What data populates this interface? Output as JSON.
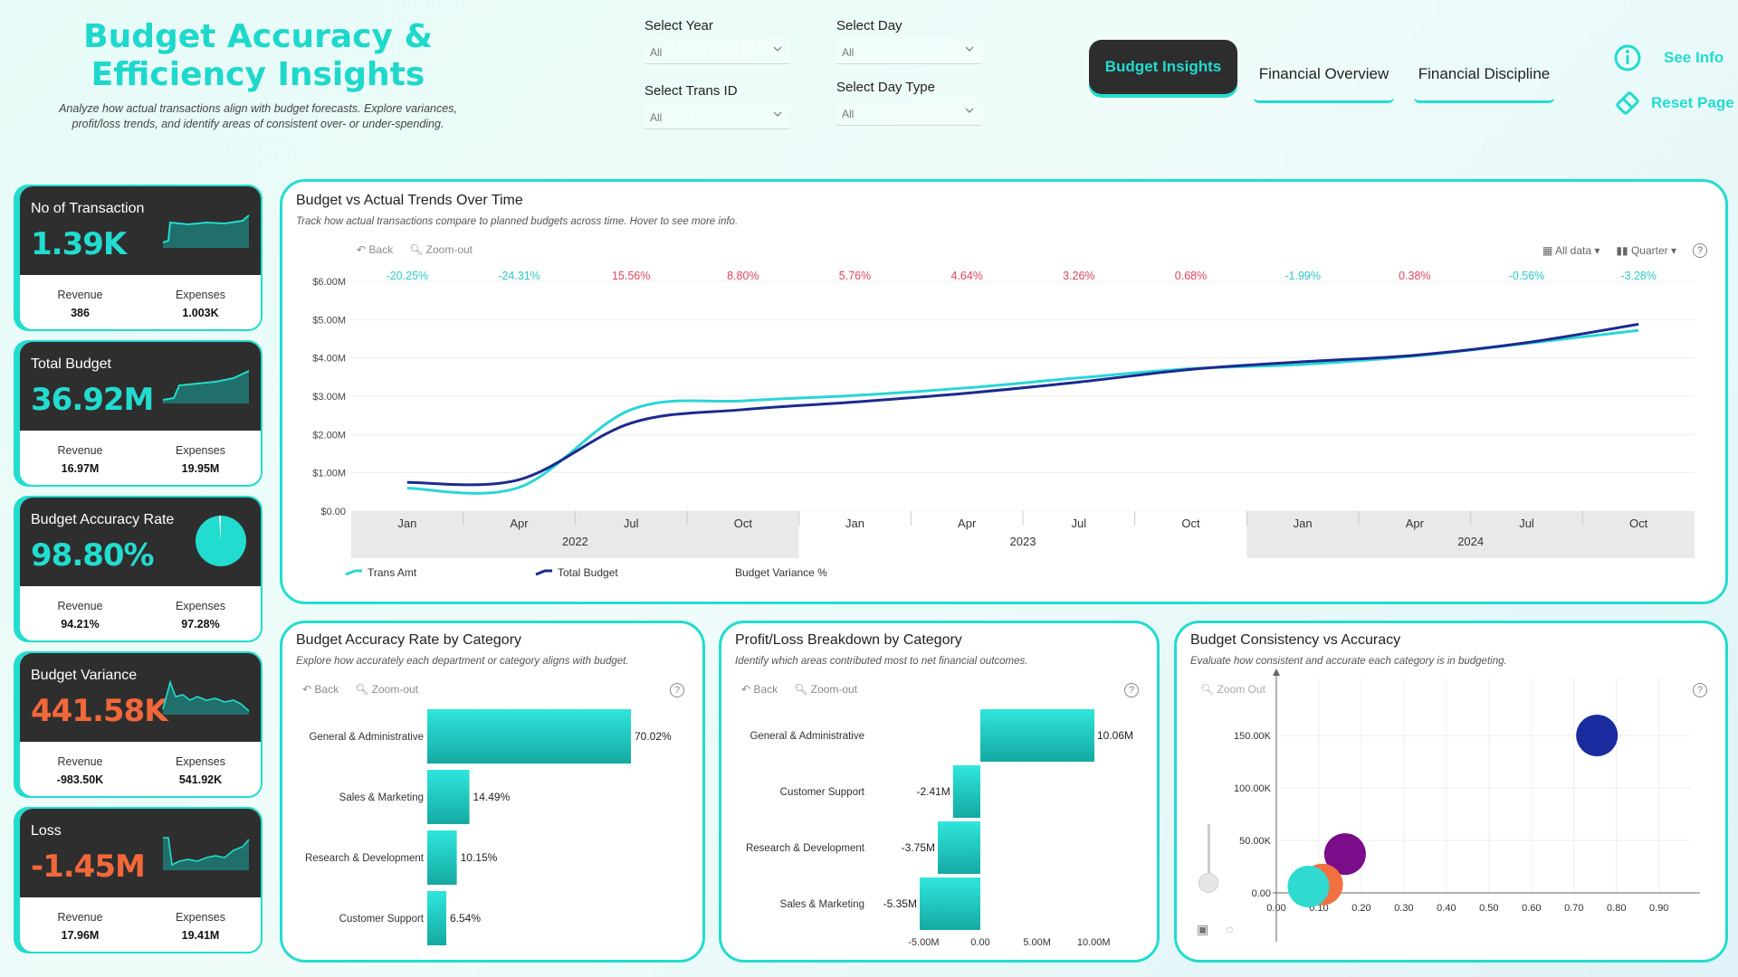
{
  "header": {
    "title": "Budget Accuracy & Efficiency Insights",
    "subtitle": "Analyze how actual transactions align with budget forecasts. Explore variances, profit/loss trends, and identify areas of consistent over- or under-spending."
  },
  "filters": {
    "year": {
      "label": "Select Year",
      "value": "All"
    },
    "day": {
      "label": "Select Day",
      "value": "All"
    },
    "trans_id": {
      "label": "Select Trans ID",
      "value": "All"
    },
    "day_type": {
      "label": "Select Day Type",
      "value": "All"
    }
  },
  "nav": {
    "tabs": [
      {
        "label": "Budget Insights",
        "active": true
      },
      {
        "label": "Financial Overview",
        "active": false
      },
      {
        "label": "Financial Discipline",
        "active": false
      }
    ],
    "see_info": "See Info",
    "reset_page": "Reset Page"
  },
  "kpis": [
    {
      "label": "No of Transaction",
      "value": "1.39K",
      "rev_label": "Revenue",
      "rev": "386",
      "exp_label": "Expenses",
      "exp": "1.003K"
    },
    {
      "label": "Total Budget",
      "value": "36.92M",
      "rev_label": "Revenue",
      "rev": "16.97M",
      "exp_label": "Expenses",
      "exp": "19.95M"
    },
    {
      "label": "Budget Accuracy Rate",
      "value": "98.80%",
      "rev_label": "Revenue",
      "rev": "94.21%",
      "exp_label": "Expenses",
      "exp": "97.28%"
    },
    {
      "label": "Budget Variance",
      "value": "441.58K",
      "rev_label": "Revenue",
      "rev": "-983.50K",
      "exp_label": "Expenses",
      "exp": "541.92K"
    },
    {
      "label": "Loss",
      "value": "-1.45M",
      "rev_label": "Revenue",
      "rev": "17.96M",
      "exp_label": "Expenses",
      "exp": "19.41M"
    }
  ],
  "trend": {
    "title": "Budget vs Actual Trends Over Time",
    "subtitle": "Track how actual transactions compare to planned budgets across time. Hover to see more info.",
    "back": "Back",
    "zoom_out": "Zoom-out",
    "all_data": "All data",
    "quarter": "Quarter",
    "legend": [
      "Trans Amt",
      "Total Budget",
      "Budget Variance %"
    ]
  },
  "accuracy": {
    "title": "Budget Accuracy Rate by Category",
    "subtitle": "Explore how accurately each department or category aligns with budget.",
    "back": "Back",
    "zoom_out": "Zoom-out"
  },
  "profit": {
    "title": "Profit/Loss Breakdown by Category",
    "subtitle": "Identify which areas contributed most to net financial outcomes.",
    "back": "Back",
    "zoom_out": "Zoom-out"
  },
  "consistency": {
    "title": "Budget Consistency vs Accuracy",
    "subtitle": "Evaluate how consistent and accurate each category is in budgeting.",
    "zoom_out": "Zoom Out"
  },
  "chart_data": [
    {
      "type": "line",
      "x": [
        "Jan 2022",
        "Apr 2022",
        "Jul 2022",
        "Oct 2022",
        "Jan 2023",
        "Apr 2023",
        "Jul 2023",
        "Oct 2023",
        "Jan 2024",
        "Apr 2024",
        "Jul 2024",
        "Oct 2024"
      ],
      "x_ticks": [
        "Jan",
        "Apr",
        "Jul",
        "Oct",
        "Jan",
        "Apr",
        "Jul",
        "Oct",
        "Jan",
        "Apr",
        "Jul",
        "Oct"
      ],
      "x_groups": [
        "2022",
        "2023",
        "2024"
      ],
      "series": [
        {
          "name": "Trans Amt",
          "color": "#2ad6d6",
          "values": [
            0.6,
            0.62,
            2.65,
            2.88,
            3.02,
            3.22,
            3.48,
            3.72,
            3.83,
            4.05,
            4.38,
            4.72
          ]
        },
        {
          "name": "Total Budget",
          "color": "#1b2a8f",
          "values": [
            0.75,
            0.82,
            2.3,
            2.65,
            2.85,
            3.08,
            3.37,
            3.7,
            3.9,
            4.07,
            4.4,
            4.88
          ]
        }
      ],
      "variance_labels": [
        "-20.25%",
        "-24.31%",
        "15.56%",
        "8.80%",
        "5.76%",
        "4.64%",
        "3.26%",
        "0.68%",
        "-1.99%",
        "0.38%",
        "-0.56%",
        "-3.28%"
      ],
      "y_ticks": [
        "$0.00",
        "$1.00M",
        "$2.00M",
        "$3.00M",
        "$4.00M",
        "$5.00M",
        "$6.00M"
      ],
      "ylim": [
        0,
        6
      ]
    },
    {
      "type": "bar",
      "categories": [
        "General & Administrative",
        "Sales & Marketing",
        "Research & Development",
        "Customer Support"
      ],
      "values": [
        70.02,
        14.49,
        10.15,
        6.54
      ],
      "labels": [
        "70.02%",
        "14.49%",
        "10.15%",
        "6.54%"
      ]
    },
    {
      "type": "bar",
      "categories": [
        "General & Administrative",
        "Customer Support",
        "Research & Development",
        "Sales & Marketing"
      ],
      "values": [
        10.06,
        -2.41,
        -3.75,
        -5.35
      ],
      "labels": [
        "10.06M",
        "-2.41M",
        "-3.75M",
        "-5.35M"
      ],
      "x_ticks": [
        "-5.00M",
        "0.00",
        "5.00M",
        "10.00M"
      ],
      "xlim": [
        -5.35,
        10.06
      ]
    },
    {
      "type": "scatter",
      "points": [
        {
          "x": 0.7,
          "y": 150,
          "color": "#1a2ba0"
        },
        {
          "x": 0.15,
          "y": 37,
          "color": "#7b0c8a"
        },
        {
          "x": 0.1,
          "y": 8,
          "color": "#f07040"
        },
        {
          "x": 0.07,
          "y": 6,
          "color": "#2fdad0"
        }
      ],
      "x_ticks": [
        "0.00",
        "0.10",
        "0.20",
        "0.30",
        "0.40",
        "0.50",
        "0.60",
        "0.70",
        "0.80",
        "0.90"
      ],
      "y_ticks": [
        "0.00",
        "50.00K",
        "100.00K",
        "150.00K"
      ],
      "xlim": [
        0,
        0.9
      ],
      "ylim": [
        0,
        150
      ]
    }
  ]
}
